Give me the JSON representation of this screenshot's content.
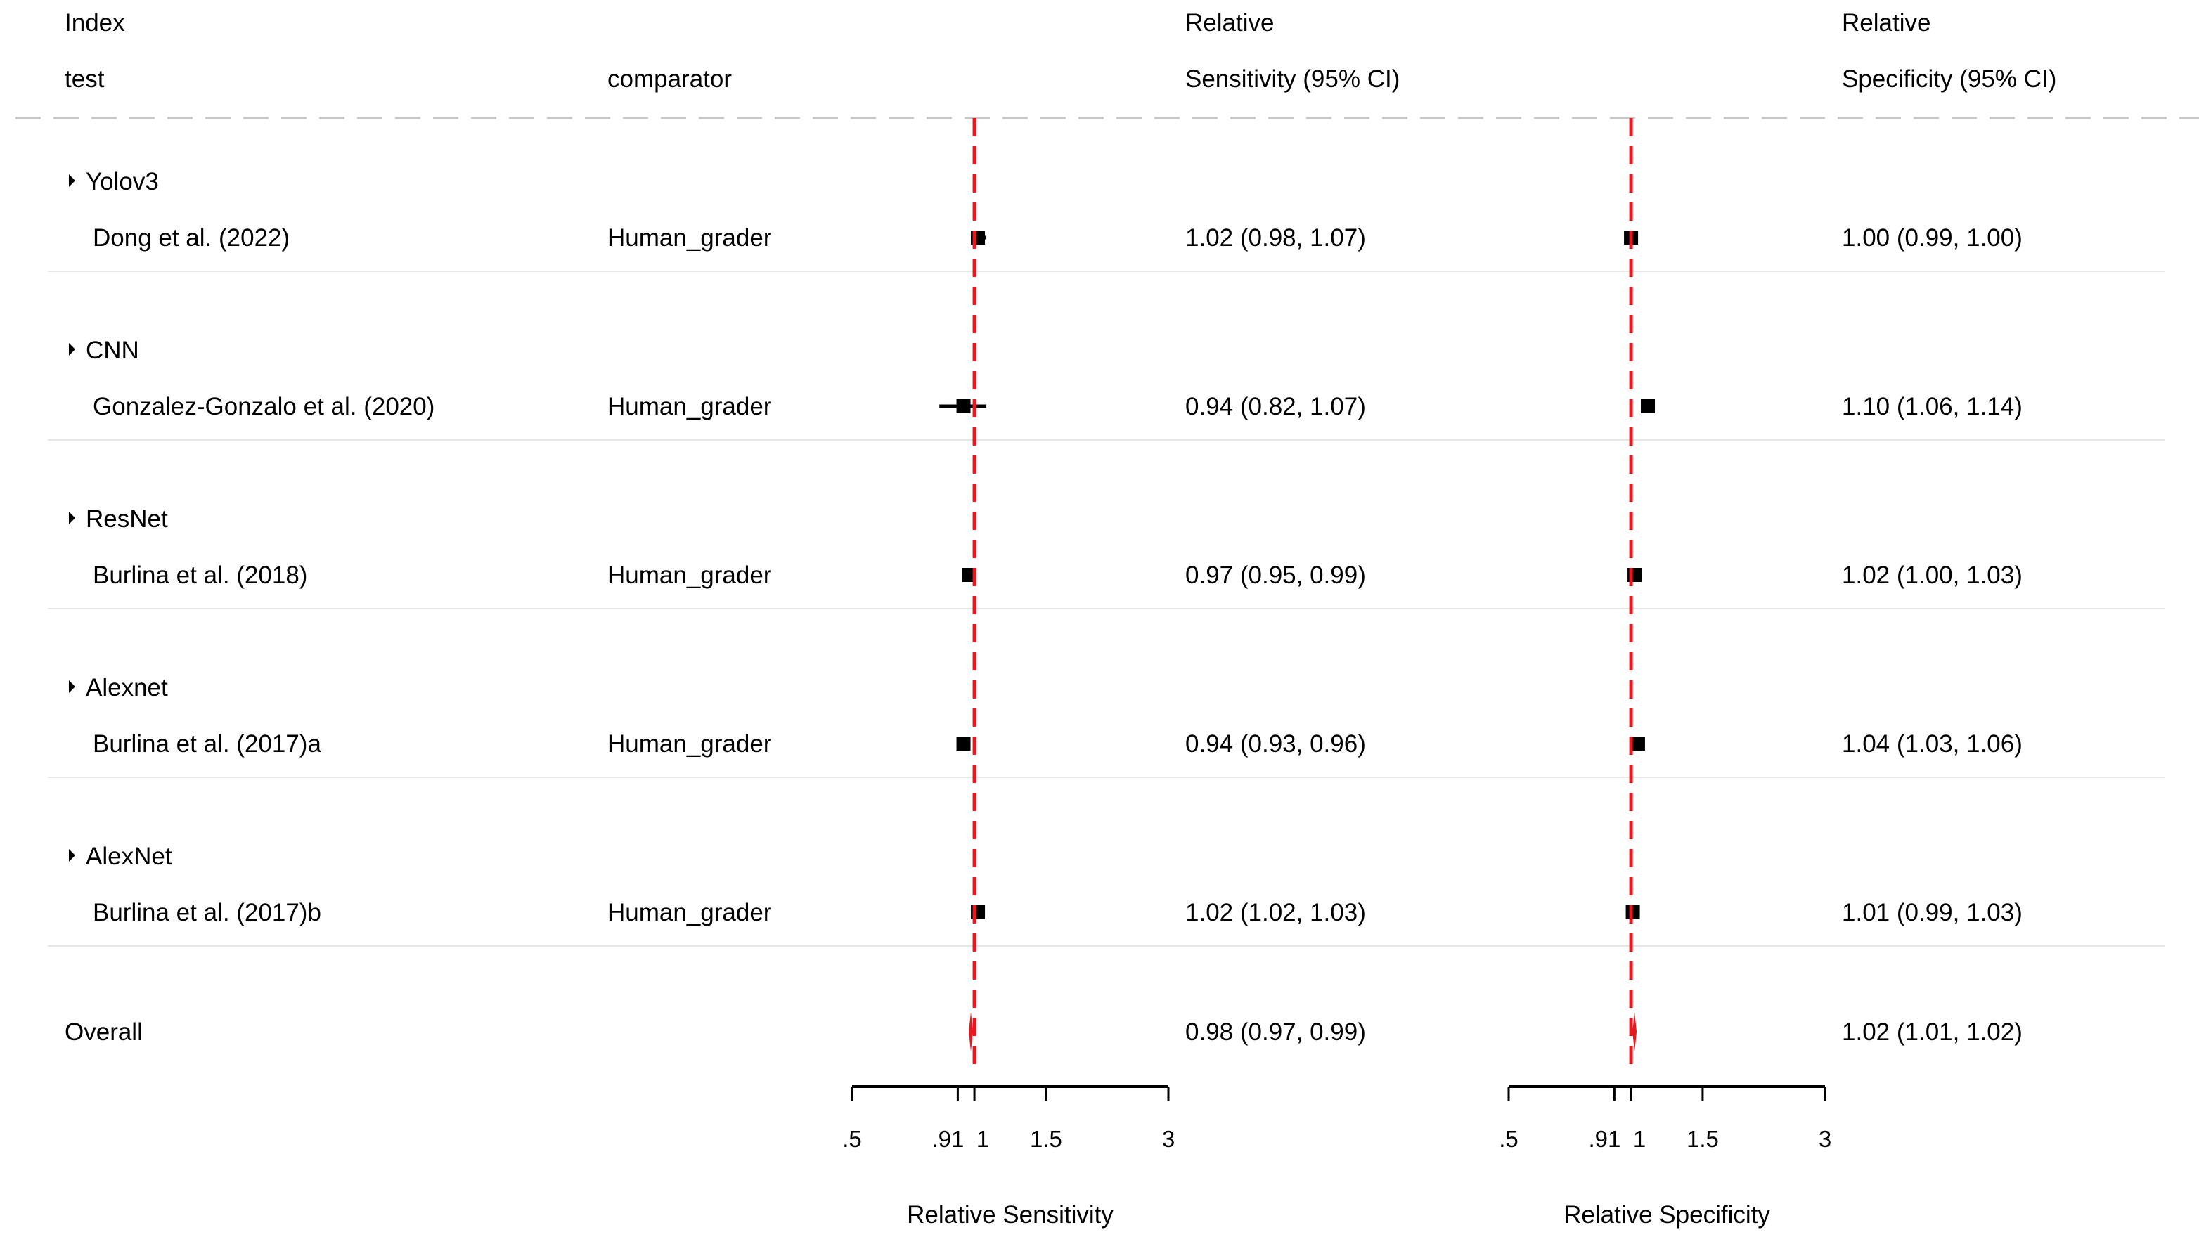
{
  "header": {
    "col_index_line1": "Index",
    "col_index_line2": "test",
    "col_comparator": "comparator",
    "col_sens_line1": "Relative",
    "col_sens_line2": "Sensitivity (95% CI)",
    "col_spec_line1": "Relative",
    "col_spec_line2": "Specificity (95% CI)"
  },
  "colors": {
    "reference_line": "#e8191e",
    "marker": "#000000",
    "divider": "#c8c8c8",
    "separator": "#e6e6e6"
  },
  "chart_data": {
    "type": "forest",
    "groups": [
      {
        "test": "Yolov3",
        "study": "Dong et al. (2022)",
        "comparator": "Human_grader",
        "sens": {
          "est": 1.02,
          "lo": 0.98,
          "hi": 1.07,
          "label": "1.02 (0.98, 1.07)"
        },
        "spec": {
          "est": 1.0,
          "lo": 0.99,
          "hi": 1.0,
          "label": "1.00 (0.99, 1.00)"
        }
      },
      {
        "test": "CNN",
        "study": "Gonzalez-Gonzalo et al. (2020)",
        "comparator": "Human_grader",
        "sens": {
          "est": 0.94,
          "lo": 0.82,
          "hi": 1.07,
          "label": "0.94 (0.82, 1.07)"
        },
        "spec": {
          "est": 1.1,
          "lo": 1.06,
          "hi": 1.14,
          "label": "1.10 (1.06, 1.14)"
        }
      },
      {
        "test": "ResNet",
        "study": "Burlina et al. (2018)",
        "comparator": "Human_grader",
        "sens": {
          "est": 0.97,
          "lo": 0.95,
          "hi": 0.99,
          "label": "0.97 (0.95, 0.99)"
        },
        "spec": {
          "est": 1.02,
          "lo": 1.0,
          "hi": 1.03,
          "label": "1.02 (1.00, 1.03)"
        }
      },
      {
        "test": "Alexnet",
        "study": "Burlina et al. (2017)a",
        "comparator": "Human_grader",
        "sens": {
          "est": 0.94,
          "lo": 0.93,
          "hi": 0.96,
          "label": "0.94 (0.93, 0.96)"
        },
        "spec": {
          "est": 1.04,
          "lo": 1.03,
          "hi": 1.06,
          "label": "1.04 (1.03, 1.06)"
        }
      },
      {
        "test": "AlexNet",
        "study": "Burlina et al. (2017)b",
        "comparator": "Human_grader",
        "sens": {
          "est": 1.02,
          "lo": 1.02,
          "hi": 1.03,
          "label": "1.02 (1.02, 1.03)"
        },
        "spec": {
          "est": 1.01,
          "lo": 0.99,
          "hi": 1.03,
          "label": "1.01 (0.99, 1.03)"
        }
      }
    ],
    "overall": {
      "label": "Overall",
      "sens": {
        "est": 0.98,
        "lo": 0.97,
        "hi": 0.99,
        "label": "0.98 (0.97, 0.99)"
      },
      "spec": {
        "est": 1.02,
        "lo": 1.01,
        "hi": 1.02,
        "label": "1.02 (1.01, 1.02)"
      }
    },
    "reference_value": 1,
    "x_scale": "log",
    "xlim": [
      0.5,
      3
    ],
    "xticks": [
      0.5,
      0.91,
      1,
      1.5,
      3
    ],
    "xtick_labels": [
      ".5",
      ".91",
      "1",
      "1.5",
      "3"
    ],
    "xlabel_sens": "Relative Sensitivity",
    "xlabel_spec": "Relative Specificity"
  }
}
